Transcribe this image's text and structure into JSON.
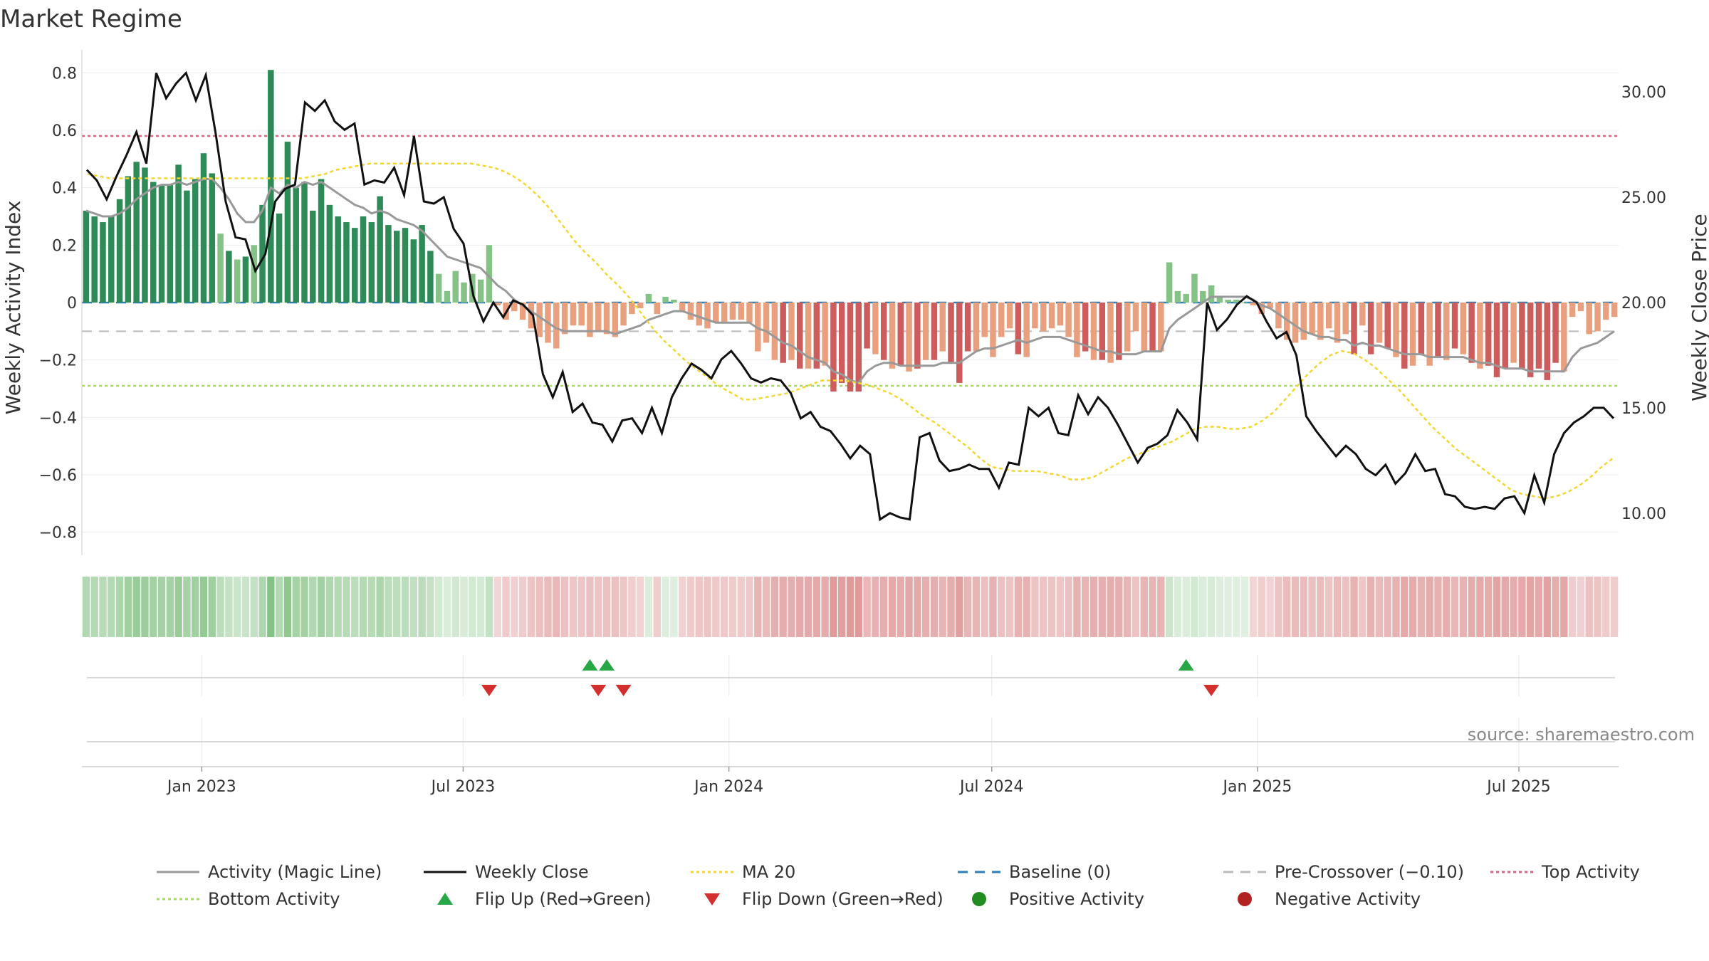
{
  "chart_data": {
    "type": "bar",
    "title": "Market Regime",
    "ylabel_left": "Weekly Activity Index",
    "ylabel_right": "Weekly Close Price",
    "ylim_left": [
      -0.88,
      0.88
    ],
    "ylim_right": [
      8.0,
      32.0
    ],
    "yticks_left": [
      0.8,
      0.6,
      0.4,
      0.2,
      0,
      -0.2,
      -0.4,
      -0.6,
      -0.8
    ],
    "ytick_labels_left": [
      "0.8",
      "0.6",
      "0.4",
      "0.2",
      "0",
      "−0.2",
      "−0.4",
      "−0.6",
      "−0.8"
    ],
    "yticks_right": [
      30,
      25,
      20,
      15,
      10
    ],
    "ytick_labels_right": [
      "30.00",
      "25.00",
      "20.00",
      "15.00",
      "10.00"
    ],
    "x_start": "2022-10-10",
    "x_end": "2025-09-08",
    "xticks": [
      "2023-01-01",
      "2023-07-01",
      "2024-01-01",
      "2024-07-01",
      "2025-01-01",
      "2025-07-01"
    ],
    "xtick_labels": [
      "Jan 2023",
      "Jul 2023",
      "Jan 2024",
      "Jul 2024",
      "Jan 2025",
      "Jul 2025"
    ],
    "reference_lines": {
      "baseline": 0,
      "pre_crossover": -0.1,
      "top_activity": 0.58,
      "bottom_activity": -0.29
    },
    "activity": [
      0.32,
      0.3,
      0.28,
      0.3,
      0.36,
      0.44,
      0.49,
      0.47,
      0.42,
      0.41,
      0.41,
      0.48,
      0.39,
      0.43,
      0.52,
      0.45,
      0.24,
      0.18,
      0.15,
      0.16,
      0.2,
      0.34,
      0.81,
      0.31,
      0.56,
      0.4,
      0.42,
      0.32,
      0.43,
      0.34,
      0.3,
      0.28,
      0.26,
      0.3,
      0.28,
      0.37,
      0.27,
      0.25,
      0.26,
      0.22,
      0.27,
      0.18,
      0.1,
      0.04,
      0.11,
      0.07,
      0.1,
      0.08,
      0.2,
      -0.01,
      -0.06,
      -0.03,
      -0.06,
      -0.09,
      -0.12,
      -0.14,
      -0.16,
      -0.11,
      -0.08,
      -0.08,
      -0.12,
      -0.1,
      -0.11,
      -0.12,
      -0.08,
      -0.04,
      -0.02,
      0.03,
      -0.04,
      0.02,
      0.01,
      -0.03,
      -0.06,
      -0.08,
      -0.09,
      -0.07,
      -0.07,
      -0.06,
      -0.06,
      -0.07,
      -0.17,
      -0.14,
      -0.2,
      -0.21,
      -0.2,
      -0.23,
      -0.23,
      -0.23,
      -0.22,
      -0.31,
      -0.28,
      -0.31,
      -0.31,
      -0.16,
      -0.18,
      -0.2,
      -0.23,
      -0.22,
      -0.24,
      -0.23,
      -0.2,
      -0.2,
      -0.17,
      -0.21,
      -0.28,
      -0.17,
      -0.17,
      -0.12,
      -0.19,
      -0.12,
      -0.09,
      -0.18,
      -0.19,
      -0.09,
      -0.1,
      -0.09,
      -0.08,
      -0.12,
      -0.19,
      -0.17,
      -0.2,
      -0.2,
      -0.21,
      -0.2,
      -0.17,
      -0.1,
      -0.17,
      -0.17,
      -0.17,
      0.14,
      0.04,
      0.03,
      0.1,
      0.04,
      0.06,
      0.02,
      0.01,
      0.01,
      0.0,
      -0.01,
      -0.04,
      -0.02,
      -0.09,
      -0.13,
      -0.14,
      -0.13,
      -0.11,
      -0.13,
      -0.09,
      -0.14,
      -0.11,
      -0.18,
      -0.08,
      -0.18,
      -0.14,
      -0.16,
      -0.19,
      -0.23,
      -0.22,
      -0.18,
      -0.22,
      -0.19,
      -0.2,
      -0.16,
      -0.18,
      -0.21,
      -0.23,
      -0.22,
      -0.26,
      -0.23,
      -0.21,
      -0.23,
      -0.26,
      -0.23,
      -0.27,
      -0.21,
      -0.24,
      -0.05,
      -0.03,
      -0.11,
      -0.1,
      -0.06,
      -0.05
    ],
    "activity_labels": {
      "series_name_magic_line": "Activity (Magic Line)"
    },
    "magic_line": [
      0.32,
      0.31,
      0.3,
      0.3,
      0.31,
      0.33,
      0.36,
      0.38,
      0.4,
      0.41,
      0.41,
      0.42,
      0.41,
      0.42,
      0.43,
      0.43,
      0.4,
      0.36,
      0.31,
      0.28,
      0.28,
      0.32,
      0.4,
      0.38,
      0.41,
      0.4,
      0.42,
      0.41,
      0.42,
      0.4,
      0.38,
      0.36,
      0.34,
      0.33,
      0.31,
      0.32,
      0.31,
      0.29,
      0.28,
      0.27,
      0.25,
      0.22,
      0.19,
      0.16,
      0.15,
      0.14,
      0.13,
      0.12,
      0.09,
      0.06,
      0.04,
      0.01,
      -0.01,
      -0.03,
      -0.05,
      -0.07,
      -0.09,
      -0.1,
      -0.1,
      -0.1,
      -0.1,
      -0.1,
      -0.1,
      -0.11,
      -0.1,
      -0.09,
      -0.08,
      -0.06,
      -0.05,
      -0.04,
      -0.03,
      -0.03,
      -0.04,
      -0.05,
      -0.06,
      -0.07,
      -0.07,
      -0.07,
      -0.07,
      -0.07,
      -0.09,
      -0.1,
      -0.12,
      -0.14,
      -0.15,
      -0.17,
      -0.19,
      -0.2,
      -0.21,
      -0.24,
      -0.25,
      -0.27,
      -0.28,
      -0.24,
      -0.22,
      -0.21,
      -0.21,
      -0.22,
      -0.22,
      -0.22,
      -0.22,
      -0.22,
      -0.21,
      -0.21,
      -0.21,
      -0.19,
      -0.17,
      -0.16,
      -0.16,
      -0.15,
      -0.14,
      -0.13,
      -0.14,
      -0.13,
      -0.12,
      -0.12,
      -0.12,
      -0.13,
      -0.14,
      -0.15,
      -0.16,
      -0.17,
      -0.17,
      -0.18,
      -0.18,
      -0.18,
      -0.17,
      -0.17,
      -0.17,
      -0.09,
      -0.06,
      -0.04,
      -0.02,
      0.0,
      0.02,
      0.02,
      0.02,
      0.02,
      0.02,
      0.01,
      -0.01,
      -0.02,
      -0.04,
      -0.06,
      -0.08,
      -0.1,
      -0.11,
      -0.12,
      -0.12,
      -0.13,
      -0.13,
      -0.15,
      -0.14,
      -0.15,
      -0.15,
      -0.16,
      -0.17,
      -0.18,
      -0.18,
      -0.18,
      -0.19,
      -0.19,
      -0.19,
      -0.19,
      -0.19,
      -0.2,
      -0.21,
      -0.21,
      -0.22,
      -0.23,
      -0.23,
      -0.23,
      -0.24,
      -0.24,
      -0.24,
      -0.24,
      -0.24,
      -0.19,
      -0.16,
      -0.15,
      -0.14,
      -0.12,
      -0.1
    ],
    "weekly_close": [
      26.3,
      25.8,
      24.9,
      26.0,
      27.0,
      28.1,
      26.6,
      30.9,
      29.7,
      30.4,
      30.9,
      29.6,
      30.8,
      28.0,
      24.8,
      23.1,
      23.0,
      21.5,
      22.3,
      24.8,
      25.4,
      25.6,
      29.5,
      29.1,
      29.6,
      28.6,
      28.2,
      28.5,
      25.6,
      25.8,
      25.7,
      26.4,
      25.1,
      27.9,
      24.8,
      24.7,
      25.0,
      23.5,
      22.8,
      20.3,
      19.1,
      20.0,
      19.3,
      20.1,
      19.9,
      19.4,
      16.6,
      15.5,
      16.7,
      14.8,
      15.2,
      14.3,
      14.2,
      13.4,
      14.4,
      14.5,
      13.8,
      15.0,
      13.8,
      15.5,
      16.4,
      17.1,
      16.8,
      16.4,
      17.3,
      17.7,
      17.1,
      16.4,
      16.2,
      16.4,
      16.3,
      15.7,
      14.5,
      14.8,
      14.1,
      13.9,
      13.3,
      12.6,
      13.2,
      12.8,
      9.7,
      10.0,
      9.8,
      9.7,
      13.6,
      13.8,
      12.5,
      12.0,
      12.1,
      12.3,
      12.1,
      12.1,
      11.2,
      12.4,
      12.3,
      15.0,
      14.6,
      15.0,
      13.8,
      13.7,
      15.6,
      14.7,
      15.5,
      15.0,
      14.2,
      13.3,
      12.4,
      13.1,
      13.3,
      13.7,
      14.9,
      14.3,
      13.5,
      20.0,
      18.7,
      19.2,
      19.9,
      20.3,
      20.0,
      19.1,
      18.3,
      18.6,
      17.5,
      14.6,
      13.9,
      13.3,
      12.7,
      13.2,
      12.8,
      12.1,
      11.8,
      12.3,
      11.4,
      11.9,
      12.8,
      12.0,
      12.1,
      10.9,
      10.8,
      10.3,
      10.2,
      10.3,
      10.2,
      10.7,
      10.8,
      10.0,
      11.8,
      10.5,
      12.8,
      13.8,
      14.3,
      14.6,
      15.0,
      15.0,
      14.5
    ],
    "ma20": [
      26.1,
      26.0,
      25.9,
      25.9,
      25.9,
      25.9,
      25.9,
      25.9,
      25.9,
      25.9,
      25.9,
      25.9,
      25.9,
      25.9,
      25.9,
      25.9,
      25.9,
      25.9,
      25.9,
      25.9,
      26.0,
      26.1,
      26.3,
      26.4,
      26.5,
      26.6,
      26.6,
      26.6,
      26.6,
      26.6,
      26.6,
      26.6,
      26.6,
      26.6,
      26.6,
      26.5,
      26.4,
      26.2,
      25.9,
      25.5,
      25.0,
      24.4,
      23.7,
      23.0,
      22.4,
      21.9,
      21.3,
      20.8,
      20.2,
      19.5,
      18.8,
      18.2,
      17.7,
      17.2,
      16.8,
      16.4,
      16.0,
      15.7,
      15.4,
      15.4,
      15.5,
      15.6,
      15.7,
      15.9,
      16.1,
      16.3,
      16.3,
      16.3,
      16.2,
      16.1,
      15.9,
      15.7,
      15.4,
      15.0,
      14.6,
      14.3,
      13.9,
      13.5,
      13.1,
      12.6,
      12.2,
      12.1,
      12.0,
      12.0,
      12.0,
      11.9,
      11.8,
      11.6,
      11.6,
      11.7,
      12.0,
      12.3,
      12.6,
      12.8,
      13.0,
      13.2,
      13.4,
      13.7,
      14.0,
      14.1,
      14.1,
      14.0,
      14.0,
      14.1,
      14.4,
      14.8,
      15.4,
      16.0,
      16.6,
      17.1,
      17.5,
      17.7,
      17.6,
      17.3,
      16.9,
      16.4,
      15.9,
      15.3,
      14.7,
      14.1,
      13.6,
      13.1,
      12.7,
      12.3,
      11.9,
      11.5,
      11.1,
      10.9,
      10.8,
      10.7,
      10.8,
      11.0,
      11.3,
      11.7,
      12.2,
      12.6
    ],
    "flip_up_weeks": [
      60,
      62,
      131
    ],
    "flip_down_weeks": [
      48,
      61,
      64,
      134
    ],
    "strip_colors": {
      "pos_strong": "#3da053",
      "neg_strong": "#d97a7a"
    },
    "colors": {
      "pos_dark": "#2e8b57",
      "pos_light": "#85c285",
      "neg_dark": "#cd5c5c",
      "neg_light": "#e8a07f",
      "magic_line": "#999999",
      "weekly_close": "#111111",
      "ma20": "#f2d631",
      "baseline": "#2e7fb8",
      "pre_crossover": "#bbbbbb",
      "top_activity": "#e0607e",
      "bottom_activity": "#a6d96a",
      "flip_up": "#27a745",
      "flip_down": "#d32f2f",
      "positive_activity": "#228b22",
      "negative_activity": "#b22222"
    },
    "legend": [
      {
        "label": "Activity (Magic Line)",
        "kind": "line",
        "color": "#999999",
        "dash": ""
      },
      {
        "label": "Weekly Close",
        "kind": "line",
        "color": "#111111",
        "dash": ""
      },
      {
        "label": "MA 20",
        "kind": "line",
        "color": "#f2d631",
        "dash": "4,4"
      },
      {
        "label": "Baseline (0)",
        "kind": "line",
        "color": "#2e7fb8",
        "dash": "14,10"
      },
      {
        "label": "Pre-Crossover (−0.10)",
        "kind": "line",
        "color": "#bbbbbb",
        "dash": "14,10"
      },
      {
        "label": "Top Activity",
        "kind": "line",
        "color": "#e0607e",
        "dash": "4,4"
      },
      {
        "label": "Bottom Activity",
        "kind": "line",
        "color": "#a6d96a",
        "dash": "4,4"
      },
      {
        "label": "Flip Up (Red→Green)",
        "kind": "triangle-up",
        "color": "#27a745",
        "dash": ""
      },
      {
        "label": "Flip Down (Green→Red)",
        "kind": "triangle-down",
        "color": "#d32f2f",
        "dash": ""
      },
      {
        "label": "Positive Activity",
        "kind": "dot",
        "color": "#228b22",
        "dash": ""
      },
      {
        "label": "Negative Activity",
        "kind": "dot",
        "color": "#b22222",
        "dash": ""
      }
    ],
    "legend_position": "bottom",
    "grid": true,
    "source": "source: sharemaestro.com"
  }
}
